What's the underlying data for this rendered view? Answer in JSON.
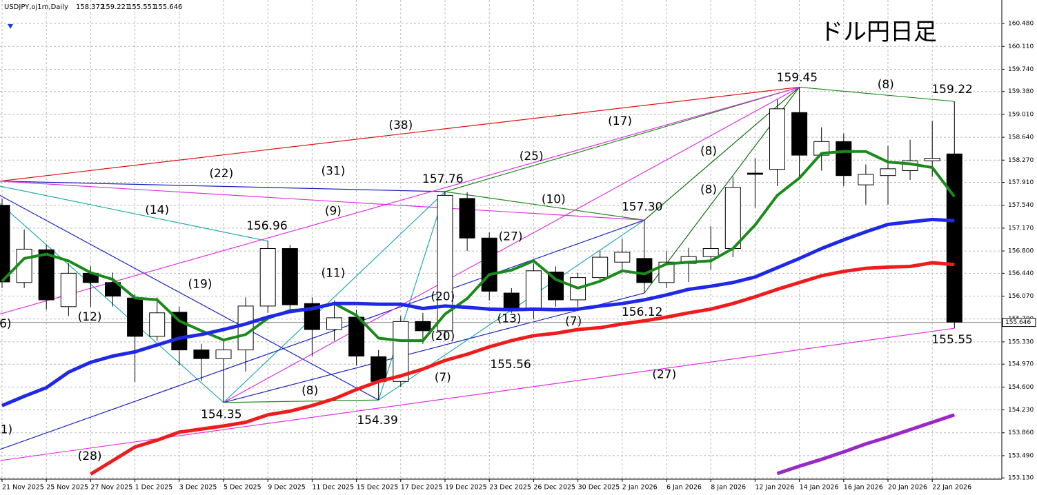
{
  "header": {
    "symbol": "USDJPY,oj1m,Daily",
    "prices": [
      158.372,
      159.221,
      155.551,
      155.646
    ]
  },
  "chart_data": {
    "type": "candlestick",
    "title": "ドル円日足",
    "categories": [
      "21 Nov 2025",
      null,
      "25 Nov 2025",
      null,
      "27 Nov 2025",
      null,
      "1 Dec 2025",
      null,
      "3 Dec 2025",
      null,
      "5 Dec 2025",
      null,
      "9 Dec 2025",
      null,
      "11 Dec 2025",
      null,
      "15 Dec 2025",
      null,
      "17 Dec 2025",
      null,
      "19 Dec 2025",
      null,
      "23 Dec 2025",
      null,
      "26 Dec 2025",
      null,
      "30 Dec 2025",
      null,
      "2 Jan 2026",
      null,
      "6 Jan 2026",
      null,
      "8 Jan 2026",
      null,
      "12 Jan 2026",
      null,
      "14 Jan 2026",
      null,
      "16 Jan 2026",
      null,
      "20 Jan 2026",
      null,
      "22 Jan 2026",
      null
    ],
    "open": [
      157.54,
      156.29,
      156.82,
      155.9,
      156.44,
      156.29,
      156.04,
      155.42,
      155.81,
      155.2,
      155.06,
      155.2,
      155.91,
      156.84,
      155.95,
      155.53,
      155.73,
      155.09,
      154.69,
      155.66,
      155.51,
      157.65,
      157.01,
      156.12,
      155.84,
      156.46,
      156.01,
      156.37,
      156.62,
      156.68,
      156.29,
      156.6,
      156.71,
      156.84,
      158.06,
      158.12,
      159.04,
      158.35,
      158.57,
      157.87,
      158.02,
      158.1,
      158.26,
      158.37
    ],
    "high": [
      157.65,
      157.15,
      156.9,
      156.6,
      156.55,
      156.45,
      156.1,
      156.05,
      155.9,
      155.3,
      155.35,
      156.05,
      156.96,
      156.9,
      156.05,
      156.0,
      155.85,
      155.2,
      155.75,
      155.8,
      157.76,
      157.75,
      157.1,
      156.2,
      156.6,
      156.55,
      156.45,
      156.8,
      157.0,
      157.3,
      156.8,
      156.85,
      157.2,
      158.0,
      158.3,
      159.25,
      159.45,
      158.8,
      158.7,
      158.2,
      158.5,
      158.6,
      158.9,
      159.22
    ],
    "low": [
      156.2,
      156.2,
      155.85,
      155.75,
      155.9,
      155.9,
      154.68,
      155.35,
      154.95,
      154.7,
      154.35,
      154.85,
      155.8,
      155.85,
      155.1,
      155.35,
      154.95,
      154.39,
      154.6,
      155.3,
      155.35,
      156.8,
      156.0,
      155.8,
      155.7,
      155.9,
      155.9,
      156.3,
      156.45,
      156.12,
      156.2,
      156.3,
      156.5,
      156.7,
      157.5,
      157.85,
      158.0,
      158.1,
      157.85,
      157.55,
      157.55,
      157.95,
      158.0,
      155.55
    ],
    "close": [
      156.3,
      156.83,
      156.01,
      156.44,
      156.29,
      156.07,
      155.42,
      155.8,
      155.2,
      155.06,
      155.2,
      155.91,
      156.84,
      155.93,
      155.53,
      155.72,
      155.1,
      154.69,
      155.66,
      155.51,
      157.7,
      157.01,
      156.15,
      155.87,
      156.48,
      156.01,
      156.37,
      156.7,
      156.78,
      156.29,
      156.62,
      156.71,
      156.84,
      157.83,
      158.04,
      159.1,
      158.35,
      158.57,
      158.02,
      158.04,
      158.13,
      158.26,
      158.3,
      155.65
    ],
    "up_color": "#ffffff",
    "down_color": "#000000",
    "series": [
      {
        "color": "#1a8a1a",
        "width": 4,
        "values": [
          156.31,
          156.68,
          156.75,
          156.64,
          156.45,
          156.34,
          156.04,
          156.01,
          155.67,
          155.51,
          155.36,
          155.45,
          155.71,
          155.84,
          155.86,
          155.95,
          155.76,
          155.39,
          155.35,
          155.35,
          155.78,
          156.03,
          156.42,
          156.49,
          156.64,
          156.34,
          156.2,
          156.31,
          156.48,
          156.43,
          156.59,
          156.62,
          156.64,
          156.84,
          157.22,
          157.7,
          157.98,
          158.38,
          158.41,
          158.41,
          158.24,
          158.21,
          158.15,
          157.68
        ]
      },
      {
        "color": "#1e28e6",
        "width": 5,
        "values": [
          154.3,
          154.45,
          154.59,
          154.84,
          155.0,
          155.1,
          155.17,
          155.28,
          155.39,
          155.45,
          155.53,
          155.62,
          155.73,
          155.82,
          155.87,
          155.95,
          155.95,
          155.94,
          155.94,
          155.87,
          155.91,
          155.89,
          155.86,
          155.85,
          155.86,
          155.85,
          155.86,
          155.91,
          155.95,
          156.01,
          156.09,
          156.18,
          156.23,
          156.29,
          156.38,
          156.53,
          156.68,
          156.84,
          156.98,
          157.11,
          157.23,
          157.27,
          157.31,
          157.29
        ]
      },
      {
        "color": "#ee1c1c",
        "width": 5,
        "values": [
          null,
          null,
          null,
          null,
          153.19,
          153.41,
          153.63,
          153.74,
          153.87,
          153.92,
          153.97,
          154.03,
          154.15,
          154.21,
          154.3,
          154.41,
          154.56,
          154.69,
          154.78,
          154.89,
          155.03,
          155.13,
          155.25,
          155.35,
          155.43,
          155.47,
          155.53,
          155.56,
          155.62,
          155.67,
          155.73,
          155.8,
          155.86,
          155.95,
          156.06,
          156.18,
          156.29,
          156.4,
          156.47,
          156.52,
          156.54,
          156.55,
          156.61,
          156.58
        ]
      },
      {
        "color": "#9a28c8",
        "width": 5,
        "values": [
          null,
          null,
          null,
          null,
          null,
          null,
          null,
          null,
          null,
          null,
          null,
          null,
          null,
          null,
          null,
          null,
          null,
          null,
          null,
          null,
          null,
          null,
          null,
          null,
          null,
          null,
          null,
          null,
          null,
          null,
          null,
          null,
          null,
          null,
          null,
          153.2,
          153.32,
          153.43,
          153.55,
          153.68,
          153.79,
          153.91,
          154.03,
          154.15
        ]
      }
    ],
    "trendlines": [
      {
        "color": "#e01010",
        "from": [
          -0.1,
          157.93
        ],
        "to": [
          36,
          159.45
        ]
      },
      {
        "color": "#1f8a1f",
        "from": [
          36,
          159.45
        ],
        "to": [
          43,
          159.22
        ]
      },
      {
        "color": "#1f8a1f",
        "from": [
          36,
          159.45
        ],
        "to": [
          20,
          157.76
        ]
      },
      {
        "color": "#0c6e0c",
        "from": [
          36,
          159.45
        ],
        "to": [
          29,
          157.3
        ]
      },
      {
        "color": "#0c6e0c",
        "from": [
          36,
          159.45
        ],
        "to": [
          29,
          156.12
        ]
      },
      {
        "color": "#1f8a1f",
        "from": [
          20,
          157.76
        ],
        "to": [
          29,
          157.3
        ]
      },
      {
        "color": "#1f8a1f",
        "from": [
          10,
          154.35
        ],
        "to": [
          17,
          154.39
        ]
      },
      {
        "color": "#20a8b0",
        "from": [
          -0.1,
          157.57
        ],
        "to": [
          10,
          154.35
        ]
      },
      {
        "color": "#20a8b0",
        "from": [
          -0.1,
          157.85
        ],
        "to": [
          12,
          156.96
        ]
      },
      {
        "color": "#20a8b0",
        "from": [
          10,
          154.35
        ],
        "to": [
          20,
          157.76
        ]
      },
      {
        "color": "#20a8b0",
        "from": [
          17,
          154.39
        ],
        "to": [
          20,
          157.76
        ]
      },
      {
        "color": "#20a8b0",
        "from": [
          17,
          154.39
        ],
        "to": [
          29,
          157.3
        ]
      },
      {
        "color": "#1a22c0",
        "from": [
          -0.1,
          157.7
        ],
        "to": [
          17,
          154.39
        ]
      },
      {
        "color": "#1a22c0",
        "from": [
          -0.1,
          157.93
        ],
        "to": [
          20,
          157.76
        ]
      },
      {
        "color": "#1a22c0",
        "from": [
          -0.1,
          153.59
        ],
        "to": [
          29,
          157.3
        ]
      },
      {
        "color": "#1a22c0",
        "from": [
          10,
          154.35
        ],
        "to": [
          29,
          156.12
        ]
      },
      {
        "color": "#e030e0",
        "from": [
          -0.1,
          157.93
        ],
        "to": [
          29,
          157.3
        ]
      },
      {
        "color": "#e030e0",
        "from": [
          -0.1,
          155.78
        ],
        "to": [
          36,
          159.45
        ]
      },
      {
        "color": "#e030e0",
        "from": [
          -0.1,
          153.41
        ],
        "to": [
          43,
          155.55
        ]
      },
      {
        "color": "#e030e0",
        "from": [
          10,
          154.35
        ],
        "to": [
          36,
          159.45
        ]
      }
    ],
    "annotations": [
      {
        "text": "159.45",
        "at": [
          35.9,
          159.6
        ]
      },
      {
        "text": "(8)",
        "at": [
          39.9,
          159.49
        ]
      },
      {
        "text": "159.22",
        "at": [
          42.9,
          159.41
        ]
      },
      {
        "text": "(38)",
        "at": [
          18,
          158.83
        ]
      },
      {
        "text": "(17)",
        "at": [
          27.9,
          158.9
        ]
      },
      {
        "text": "(25)",
        "at": [
          23.9,
          158.33
        ]
      },
      {
        "text": "(8)",
        "at": [
          31.9,
          158.41
        ]
      },
      {
        "text": "(8)",
        "at": [
          31.9,
          157.79
        ]
      },
      {
        "text": "(22)",
        "at": [
          9.9,
          158.05
        ]
      },
      {
        "text": "(31)",
        "at": [
          14.95,
          158.09
        ]
      },
      {
        "text": "157.76",
        "at": [
          19.9,
          157.96
        ]
      },
      {
        "text": "(10)",
        "at": [
          24.9,
          157.63
        ]
      },
      {
        "text": "157.30",
        "at": [
          28.9,
          157.51
        ]
      },
      {
        "text": "(14)",
        "at": [
          7,
          157.46
        ]
      },
      {
        "text": "(9)",
        "at": [
          14.95,
          157.44
        ]
      },
      {
        "text": "156.96",
        "at": [
          11.96,
          157.2
        ]
      },
      {
        "text": "(27)",
        "at": [
          22.96,
          157.03
        ]
      },
      {
        "text": "(19)",
        "at": [
          8.94,
          156.26
        ]
      },
      {
        "text": "(11)",
        "at": [
          14.95,
          156.44
        ]
      },
      {
        "text": "(12)",
        "at": [
          3.96,
          155.73
        ]
      },
      {
        "text": "(20)",
        "at": [
          19.9,
          156.06
        ]
      },
      {
        "text": "(13)",
        "at": [
          22.9,
          155.7
        ]
      },
      {
        "text": "(7)",
        "at": [
          25.8,
          155.66
        ]
      },
      {
        "text": "156.12",
        "at": [
          28.9,
          155.81
        ]
      },
      {
        "text": "(20)",
        "at": [
          19.9,
          155.42
        ]
      },
      {
        "text": "(7)",
        "at": [
          19.9,
          154.75
        ]
      },
      {
        "text": "155.56",
        "at": [
          22.96,
          154.96
        ]
      },
      {
        "text": "155.55",
        "at": [
          42.9,
          155.36
        ]
      },
      {
        "text": "(27)",
        "at": [
          29.9,
          154.8
        ]
      },
      {
        "text": "(8)",
        "at": [
          13.9,
          154.54
        ]
      },
      {
        "text": "154.35",
        "at": [
          9.9,
          154.15
        ]
      },
      {
        "text": "154.39",
        "at": [
          16.95,
          154.06
        ]
      },
      {
        "text": "(28)",
        "at": [
          3.96,
          153.48
        ]
      },
      {
        "text": "6)",
        "at": [
          0.15,
          155.62
        ]
      },
      {
        "text": "1)",
        "at": [
          0.2,
          153.91
        ]
      }
    ],
    "ylim": [
      153.11,
      160.86
    ],
    "yticks": [
      {
        "value": 160.48,
        "label": "160.480"
      },
      {
        "value": 160.11,
        "label": "160.110"
      },
      {
        "value": 159.74,
        "label": "159.740"
      },
      {
        "value": 159.38,
        "label": "159.380"
      },
      {
        "value": 159.01,
        "label": "159.010"
      },
      {
        "value": 158.64,
        "label": "158.640"
      },
      {
        "value": 158.27,
        "label": "158.270"
      },
      {
        "value": 157.91,
        "label": "157.910"
      },
      {
        "value": 157.54,
        "label": "157.540"
      },
      {
        "value": 157.17,
        "label": "157.170"
      },
      {
        "value": 156.8,
        "label": "156.800"
      },
      {
        "value": 156.44,
        "label": "156.440"
      },
      {
        "value": 156.07,
        "label": "156.070"
      },
      {
        "value": 155.7,
        "label": "155.700"
      },
      {
        "value": 155.33,
        "label": "155.330"
      },
      {
        "value": 154.97,
        "label": "154.970"
      },
      {
        "value": 154.6,
        "label": "154.600"
      },
      {
        "value": 154.23,
        "label": "154.230"
      },
      {
        "value": 153.86,
        "label": "153.860"
      },
      {
        "value": 153.49,
        "label": "153.490"
      },
      {
        "value": 153.13,
        "label": "153.130"
      }
    ],
    "grid": true,
    "last_price": 155.646
  }
}
